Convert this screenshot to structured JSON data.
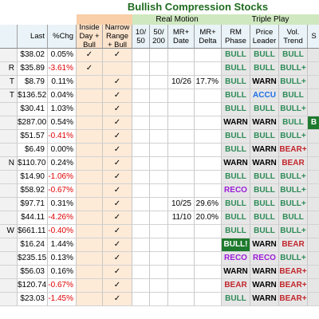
{
  "title": "Bullish Compression Stocks",
  "band_labels": {
    "real_motion": "Real Motion",
    "triple_play": "Triple Play"
  },
  "headers": [
    "",
    "Last",
    "%Chg",
    "Inside\nDay +\nBull",
    "Narrow\nRange\n+ Bull",
    "10/\n50",
    "50/\n200",
    "MR+\nDate",
    "MR+\nDelta",
    "RM\nPhase",
    "Price\nLeader",
    "Vol.\nTrend",
    "S"
  ],
  "colors": {
    "header_orange": "#fbe3cc",
    "header_light": "#eaf3f8",
    "band_orange": "#f8cfa8",
    "band_green": "#cfe8c0",
    "check_bg": "#fdebd8",
    "gray_bg": "#e6e6e6",
    "name_bg": "#f2f2f2",
    "pos": "#000000",
    "neg": "#e00000",
    "BULL": "#2e8b57",
    "BULL+": "#2e8b57",
    "WARN": "#000000",
    "ACCU": "#1e6fe6",
    "RECO": "#9b1bd8",
    "BEAR": "#c1272d",
    "BEAR+": "#c1272d",
    "filled_green": "#1e7a2e"
  },
  "rows": [
    {
      "sym": "",
      "last": "$38.02",
      "chg": "0.05%",
      "inside": "✓",
      "narrow": "✓",
      "c1050": "",
      "c50200": "",
      "date": "",
      "delta": "",
      "rm": "BULL",
      "pl": "BULL",
      "vt": "BULL",
      "s": ""
    },
    {
      "sym": "R",
      "last": "$35.89",
      "chg": "-3.61%",
      "inside": "✓",
      "narrow": "",
      "c1050": "",
      "c50200": "",
      "date": "",
      "delta": "",
      "rm": "BULL",
      "pl": "BULL",
      "vt": "BULL+",
      "s": ""
    },
    {
      "sym": "T",
      "last": "$8.79",
      "chg": "0.11%",
      "inside": "",
      "narrow": "✓",
      "c1050": "",
      "c50200": "",
      "date": "10/26",
      "delta": "17.7%",
      "rm": "BULL",
      "pl": "WARN",
      "vt": "BULL+",
      "s": ""
    },
    {
      "sym": "T",
      "last": "$136.52",
      "chg": "0.04%",
      "inside": "",
      "narrow": "✓",
      "c1050": "",
      "c50200": "",
      "date": "",
      "delta": "",
      "rm": "BULL",
      "pl": "ACCU",
      "vt": "BULL",
      "s": ""
    },
    {
      "sym": "",
      "last": "$30.41",
      "chg": "1.03%",
      "inside": "",
      "narrow": "✓",
      "c1050": "",
      "c50200": "",
      "date": "",
      "delta": "",
      "rm": "BULL",
      "pl": "BULL",
      "vt": "BULL+",
      "s": ""
    },
    {
      "sym": "",
      "last": "$287.00",
      "chg": "0.54%",
      "inside": "",
      "narrow": "✓",
      "c1050": "",
      "c50200": "",
      "date": "",
      "delta": "",
      "rm": "WARN",
      "pl": "WARN",
      "vt": "BULL",
      "s": "B"
    },
    {
      "sym": "",
      "last": "$51.57",
      "chg": "-0.41%",
      "inside": "",
      "narrow": "✓",
      "c1050": "",
      "c50200": "",
      "date": "",
      "delta": "",
      "rm": "BULL",
      "pl": "BULL",
      "vt": "BULL+",
      "s": ""
    },
    {
      "sym": "",
      "last": "$6.49",
      "chg": "0.00%",
      "inside": "",
      "narrow": "✓",
      "c1050": "",
      "c50200": "",
      "date": "",
      "delta": "",
      "rm": "BULL",
      "pl": "WARN",
      "vt": "BEAR+",
      "s": ""
    },
    {
      "sym": "N",
      "last": "$110.70",
      "chg": "0.24%",
      "inside": "",
      "narrow": "✓",
      "c1050": "",
      "c50200": "",
      "date": "",
      "delta": "",
      "rm": "WARN",
      "pl": "WARN",
      "vt": "BEAR",
      "s": ""
    },
    {
      "sym": "",
      "last": "$14.90",
      "chg": "-1.06%",
      "inside": "",
      "narrow": "✓",
      "c1050": "",
      "c50200": "",
      "date": "",
      "delta": "",
      "rm": "BULL",
      "pl": "BULL",
      "vt": "BULL+",
      "s": ""
    },
    {
      "sym": "",
      "last": "$58.92",
      "chg": "-0.67%",
      "inside": "",
      "narrow": "✓",
      "c1050": "",
      "c50200": "",
      "date": "",
      "delta": "",
      "rm": "RECO",
      "pl": "BULL",
      "vt": "BULL+",
      "s": ""
    },
    {
      "sym": "",
      "last": "$97.71",
      "chg": "0.31%",
      "inside": "",
      "narrow": "✓",
      "c1050": "",
      "c50200": "",
      "date": "10/25",
      "delta": "29.6%",
      "rm": "BULL",
      "pl": "BULL",
      "vt": "BULL+",
      "s": ""
    },
    {
      "sym": "",
      "last": "$44.11",
      "chg": "-4.26%",
      "inside": "",
      "narrow": "✓",
      "c1050": "",
      "c50200": "",
      "date": "11/10",
      "delta": "20.0%",
      "rm": "BULL",
      "pl": "BULL",
      "vt": "BULL",
      "s": ""
    },
    {
      "sym": "W",
      "last": "$661.11",
      "chg": "-0.40%",
      "inside": "",
      "narrow": "✓",
      "c1050": "",
      "c50200": "",
      "date": "",
      "delta": "",
      "rm": "BULL",
      "pl": "BULL",
      "vt": "BULL+",
      "s": ""
    },
    {
      "sym": "",
      "last": "$16.24",
      "chg": "1.44%",
      "inside": "",
      "narrow": "✓",
      "c1050": "",
      "c50200": "",
      "date": "",
      "delta": "",
      "rm": "BULL!",
      "pl": "WARN",
      "vt": "BEAR",
      "s": ""
    },
    {
      "sym": "",
      "last": "$235.15",
      "chg": "0.13%",
      "inside": "",
      "narrow": "✓",
      "c1050": "",
      "c50200": "",
      "date": "",
      "delta": "",
      "rm": "RECO",
      "pl": "RECO",
      "vt": "BULL+",
      "s": ""
    },
    {
      "sym": "",
      "last": "$56.03",
      "chg": "0.16%",
      "inside": "",
      "narrow": "✓",
      "c1050": "",
      "c50200": "",
      "date": "",
      "delta": "",
      "rm": "WARN",
      "pl": "WARN",
      "vt": "BEAR+",
      "s": ""
    },
    {
      "sym": "",
      "last": "$120.74",
      "chg": "-0.67%",
      "inside": "",
      "narrow": "✓",
      "c1050": "",
      "c50200": "",
      "date": "",
      "delta": "",
      "rm": "BEAR",
      "pl": "WARN",
      "vt": "BEAR+",
      "s": ""
    },
    {
      "sym": "",
      "last": "$23.03",
      "chg": "-1.45%",
      "inside": "",
      "narrow": "✓",
      "c1050": "",
      "c50200": "",
      "date": "",
      "delta": "",
      "rm": "BULL",
      "pl": "WARN",
      "vt": "BEAR+",
      "s": ""
    }
  ]
}
